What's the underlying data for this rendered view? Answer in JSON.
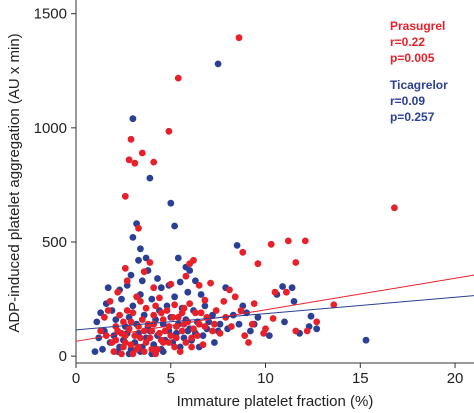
{
  "chart_data": {
    "type": "scatter",
    "xlabel": "Immature platelet fraction (%)",
    "ylabel": "ADP-induced platelet aggregation (AU x min)",
    "xlim": [
      0,
      21
    ],
    "ylim": [
      -30,
      1560
    ],
    "x_ticks": [
      "0",
      "5",
      "10",
      "15",
      "20"
    ],
    "y_ticks": [
      "0",
      "500",
      "1000",
      "1500"
    ],
    "x_tick_values": [
      0,
      5,
      10,
      15,
      20
    ],
    "y_tick_values": [
      0,
      500,
      1000,
      1500
    ],
    "grid": false,
    "legend_position": "top-right",
    "series": [
      {
        "name": "Prasugrel",
        "r_label": "r=0.22",
        "p_label": "p=0.005",
        "color": "#e8202a",
        "fit_line": {
          "x": [
            0,
            21
          ],
          "y": [
            65,
            355
          ]
        },
        "points": [
          [
            8.6,
            1395
          ],
          [
            5.4,
            1218
          ],
          [
            4.9,
            985
          ],
          [
            2.9,
            950
          ],
          [
            3.5,
            890
          ],
          [
            2.8,
            860
          ],
          [
            4.1,
            850
          ],
          [
            3.1,
            845
          ],
          [
            2.6,
            700
          ],
          [
            16.8,
            650
          ],
          [
            3.3,
            560
          ],
          [
            6.2,
            420
          ],
          [
            11.2,
            505
          ],
          [
            12.1,
            505
          ],
          [
            10.3,
            490
          ],
          [
            8.8,
            455
          ],
          [
            6.0,
            405
          ],
          [
            3.9,
            410
          ],
          [
            2.6,
            385
          ],
          [
            9.6,
            405
          ],
          [
            11.6,
            410
          ],
          [
            3.6,
            370
          ],
          [
            5.8,
            350
          ],
          [
            6.5,
            310
          ],
          [
            5.0,
            315
          ],
          [
            4.1,
            300
          ],
          [
            8.1,
            290
          ],
          [
            10.5,
            280
          ],
          [
            7.1,
            320
          ],
          [
            2.7,
            330
          ],
          [
            3.2,
            260
          ],
          [
            4.4,
            255
          ],
          [
            5.2,
            225
          ],
          [
            6.8,
            245
          ],
          [
            8.7,
            200
          ],
          [
            10.4,
            165
          ],
          [
            11.6,
            110
          ],
          [
            12.7,
            150
          ],
          [
            12.2,
            110
          ],
          [
            13.6,
            225
          ],
          [
            11.1,
            280
          ],
          [
            7.3,
            140
          ],
          [
            7.6,
            100
          ],
          [
            6.2,
            120
          ],
          [
            7.9,
            170
          ],
          [
            9.4,
            230
          ],
          [
            1.3,
            110
          ],
          [
            1.6,
            90
          ],
          [
            1.9,
            60
          ],
          [
            2.1,
            130
          ],
          [
            2.3,
            180
          ],
          [
            2.5,
            40
          ],
          [
            2.7,
            200
          ],
          [
            2.9,
            150
          ],
          [
            3.1,
            90
          ],
          [
            3.3,
            40
          ],
          [
            3.5,
            160
          ],
          [
            3.7,
            210
          ],
          [
            3.9,
            80
          ],
          [
            4.1,
            140
          ],
          [
            4.3,
            30
          ],
          [
            4.5,
            190
          ],
          [
            4.7,
            110
          ],
          [
            4.9,
            60
          ],
          [
            5.1,
            170
          ],
          [
            5.3,
            130
          ],
          [
            5.5,
            20
          ],
          [
            5.7,
            210
          ],
          [
            5.9,
            150
          ],
          [
            6.1,
            80
          ],
          [
            6.3,
            190
          ],
          [
            6.5,
            140
          ],
          [
            6.7,
            50
          ],
          [
            6.9,
            170
          ],
          [
            7.2,
            110
          ],
          [
            1.8,
            240
          ],
          [
            2.2,
            280
          ],
          [
            2.4,
            100
          ],
          [
            2.6,
            60
          ],
          [
            2.8,
            120
          ],
          [
            3.0,
            190
          ],
          [
            3.2,
            30
          ],
          [
            3.4,
            240
          ],
          [
            3.6,
            110
          ],
          [
            3.8,
            140
          ],
          [
            4.0,
            30
          ],
          [
            4.2,
            220
          ],
          [
            4.4,
            100
          ],
          [
            4.6,
            160
          ],
          [
            4.8,
            200
          ],
          [
            5.0,
            90
          ],
          [
            5.2,
            40
          ],
          [
            5.4,
            170
          ],
          [
            5.6,
            110
          ],
          [
            5.8,
            60
          ],
          [
            6.0,
            230
          ],
          [
            2.0,
            20
          ],
          [
            2.4,
            10
          ],
          [
            3.0,
            10
          ],
          [
            3.6,
            20
          ],
          [
            4.2,
            10
          ],
          [
            1.5,
            170
          ],
          [
            1.7,
            200
          ],
          [
            2.1,
            70
          ],
          [
            2.5,
            150
          ],
          [
            2.9,
            50
          ],
          [
            3.3,
            130
          ],
          [
            3.7,
            60
          ],
          [
            4.1,
            180
          ],
          [
            4.5,
            70
          ],
          [
            4.9,
            130
          ],
          [
            5.3,
            80
          ],
          [
            5.7,
            140
          ],
          [
            6.1,
            40
          ],
          [
            6.4,
            90
          ],
          [
            6.8,
            130
          ],
          [
            7.4,
            200
          ],
          [
            8.2,
            130
          ],
          [
            8.9,
            90
          ],
          [
            9.3,
            140
          ],
          [
            10.0,
            120
          ],
          [
            2.2,
            110
          ],
          [
            2.6,
            90
          ],
          [
            3.4,
            80
          ],
          [
            4.0,
            110
          ],
          [
            4.6,
            60
          ],
          [
            5.6,
            190
          ],
          [
            6.6,
            190
          ],
          [
            7.8,
            240
          ],
          [
            8.4,
            260
          ],
          [
            9.9,
            100
          ],
          [
            9.1,
            60
          ]
        ]
      },
      {
        "name": "Ticagrelor",
        "r_label": "r=0.09",
        "p_label": "p=0.257",
        "color": "#2a3f95",
        "fit_line": {
          "x": [
            0,
            21
          ],
          "y": [
            115,
            265
          ]
        },
        "points": [
          [
            7.5,
            1280
          ],
          [
            3.0,
            1040
          ],
          [
            3.9,
            780
          ],
          [
            5.0,
            670
          ],
          [
            3.2,
            580
          ],
          [
            5.2,
            570
          ],
          [
            3.0,
            520
          ],
          [
            8.5,
            485
          ],
          [
            3.4,
            470
          ],
          [
            5.4,
            430
          ],
          [
            3.7,
            430
          ],
          [
            3.3,
            420
          ],
          [
            3.8,
            375
          ],
          [
            5.8,
            390
          ],
          [
            6.0,
            375
          ],
          [
            2.9,
            355
          ],
          [
            4.3,
            340
          ],
          [
            3.5,
            330
          ],
          [
            5.5,
            325
          ],
          [
            10.9,
            305
          ],
          [
            11.4,
            300
          ],
          [
            10.6,
            270
          ],
          [
            5.9,
            280
          ],
          [
            6.6,
            270
          ],
          [
            8.3,
            180
          ],
          [
            9.0,
            190
          ],
          [
            11.5,
            240
          ],
          [
            12.4,
            175
          ],
          [
            15.3,
            70
          ],
          [
            12.3,
            130
          ],
          [
            11.0,
            150
          ],
          [
            9.6,
            170
          ],
          [
            7.5,
            110
          ],
          [
            7.0,
            150
          ],
          [
            1.1,
            150
          ],
          [
            1.3,
            190
          ],
          [
            1.6,
            230
          ],
          [
            1.9,
            200
          ],
          [
            2.1,
            160
          ],
          [
            2.4,
            250
          ],
          [
            2.6,
            130
          ],
          [
            2.8,
            170
          ],
          [
            3.0,
            220
          ],
          [
            3.2,
            140
          ],
          [
            3.4,
            270
          ],
          [
            3.6,
            180
          ],
          [
            3.8,
            130
          ],
          [
            4.0,
            250
          ],
          [
            4.2,
            160
          ],
          [
            4.4,
            200
          ],
          [
            4.6,
            140
          ],
          [
            4.8,
            220
          ],
          [
            5.0,
            170
          ],
          [
            5.2,
            260
          ],
          [
            5.4,
            140
          ],
          [
            5.6,
            210
          ],
          [
            5.8,
            160
          ],
          [
            6.0,
            120
          ],
          [
            6.2,
            200
          ],
          [
            6.4,
            150
          ],
          [
            6.8,
            220
          ],
          [
            7.2,
            180
          ],
          [
            7.6,
            140
          ],
          [
            8.0,
            120
          ],
          [
            8.6,
            140
          ],
          [
            9.2,
            110
          ],
          [
            1.2,
            80
          ],
          [
            1.5,
            110
          ],
          [
            1.8,
            60
          ],
          [
            2.0,
            90
          ],
          [
            2.3,
            40
          ],
          [
            2.5,
            70
          ],
          [
            2.7,
            100
          ],
          [
            2.9,
            30
          ],
          [
            3.1,
            60
          ],
          [
            3.3,
            100
          ],
          [
            3.5,
            40
          ],
          [
            3.7,
            80
          ],
          [
            3.9,
            110
          ],
          [
            4.1,
            50
          ],
          [
            4.3,
            90
          ],
          [
            4.5,
            30
          ],
          [
            4.7,
            70
          ],
          [
            4.9,
            110
          ],
          [
            5.1,
            60
          ],
          [
            5.3,
            100
          ],
          [
            5.5,
            40
          ],
          [
            5.7,
            80
          ],
          [
            5.9,
            110
          ],
          [
            6.1,
            70
          ],
          [
            6.3,
            100
          ],
          [
            6.5,
            40
          ],
          [
            6.7,
            90
          ],
          [
            6.9,
            120
          ],
          [
            7.3,
            60
          ],
          [
            1.0,
            20
          ],
          [
            1.4,
            30
          ],
          [
            2.2,
            20
          ],
          [
            2.8,
            10
          ],
          [
            3.4,
            20
          ],
          [
            4.0,
            10
          ],
          [
            4.6,
            20
          ],
          [
            1.7,
            300
          ],
          [
            2.3,
            290
          ],
          [
            2.7,
            310
          ],
          [
            4.5,
            300
          ],
          [
            4.9,
            310
          ],
          [
            6.3,
            330
          ],
          [
            7.9,
            300
          ],
          [
            12.7,
            120
          ],
          [
            11.8,
            100
          ],
          [
            10.2,
            90
          ],
          [
            9.4,
            140
          ],
          [
            8.8,
            220
          ]
        ]
      }
    ]
  }
}
